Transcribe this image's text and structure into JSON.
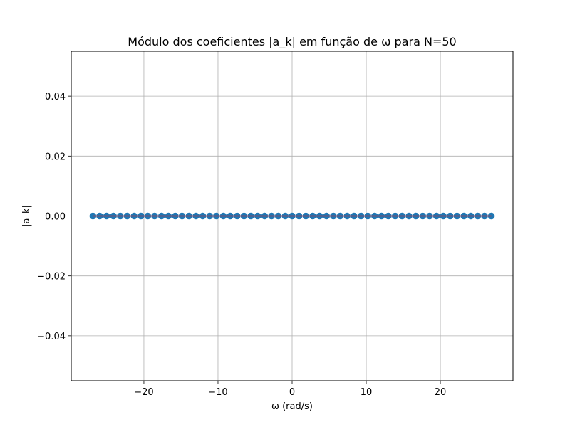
{
  "chart_data": {
    "type": "scatter",
    "title": "Módulo dos coeficientes |a_k| em função de ω para N=50",
    "xlabel": "ω (rad/s)",
    "ylabel": "|a_k|",
    "xlim": [
      -29.8,
      29.8
    ],
    "ylim": [
      -0.055,
      0.055
    ],
    "xticks": [
      -20,
      -10,
      0,
      10,
      20
    ],
    "xtick_labels": [
      "−20",
      "−10",
      "0",
      "10",
      "20"
    ],
    "yticks": [
      -0.04,
      -0.02,
      0.0,
      0.02,
      0.04
    ],
    "ytick_labels": [
      "−0.04",
      "−0.02",
      "0.00",
      "0.02",
      "0.04"
    ],
    "grid": true,
    "series": [
      {
        "marker_color": "#1f77b4",
        "stem_color": "#d62728",
        "x": [
          -26.88,
          -25.96,
          -25.03,
          -24.11,
          -23.18,
          -22.25,
          -21.32,
          -20.4,
          -19.48,
          -18.55,
          -17.62,
          -16.69,
          -15.77,
          -14.84,
          -13.91,
          -12.98,
          -12.06,
          -11.13,
          -10.21,
          -9.28,
          -8.35,
          -7.42,
          -6.49,
          -5.57,
          -4.64,
          -3.71,
          -2.78,
          -1.86,
          -0.93,
          0.0,
          0.93,
          1.86,
          2.78,
          3.71,
          4.64,
          5.57,
          6.49,
          7.42,
          8.35,
          9.28,
          10.21,
          11.13,
          12.06,
          12.98,
          13.91,
          14.84,
          15.77,
          16.69,
          17.62,
          18.55,
          19.48,
          20.4,
          21.32,
          22.25,
          23.18,
          24.11,
          25.03,
          25.96,
          26.88
        ],
        "y": [
          0,
          0,
          0,
          0,
          0,
          0,
          0,
          0,
          0,
          0,
          0,
          0,
          0,
          0,
          0,
          0,
          0,
          0,
          0,
          0,
          0,
          0,
          0,
          0,
          0,
          0,
          0,
          0,
          0,
          0,
          0,
          0,
          0,
          0,
          0,
          0,
          0,
          0,
          0,
          0,
          0,
          0,
          0,
          0,
          0,
          0,
          0,
          0,
          0,
          0,
          0,
          0,
          0,
          0,
          0,
          0,
          0,
          0,
          0
        ]
      }
    ]
  }
}
